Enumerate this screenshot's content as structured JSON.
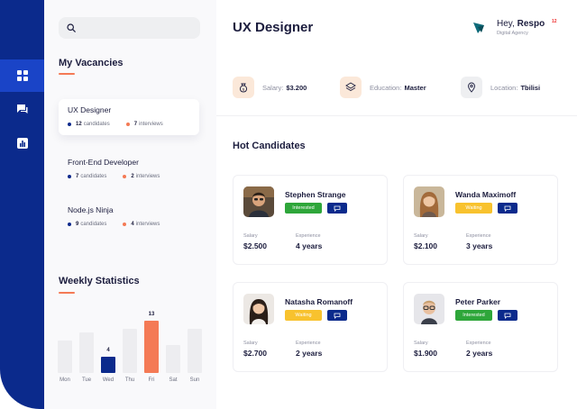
{
  "search": {
    "placeholder": ""
  },
  "nav": {
    "items": [
      {
        "icon": "dashboard-icon",
        "active": true
      },
      {
        "icon": "messages-icon",
        "active": false
      },
      {
        "icon": "chart-icon",
        "active": false
      }
    ]
  },
  "vacancies": {
    "title": "My Vacancies",
    "items": [
      {
        "title": "UX Designer",
        "candidates_count": "12",
        "candidates_label": "candidates",
        "interviews_count": "7",
        "interviews_label": "interviews",
        "active": true
      },
      {
        "title": "Front-End Developer",
        "candidates_count": "7",
        "candidates_label": "candidates",
        "interviews_count": "2",
        "interviews_label": "interviews",
        "active": false
      },
      {
        "title": "Node.js Ninja",
        "candidates_count": "9",
        "candidates_label": "candidates",
        "interviews_count": "4",
        "interviews_label": "interviews",
        "active": false
      }
    ]
  },
  "weekly": {
    "title": "Weekly Statistics"
  },
  "chart_data": {
    "type": "bar",
    "title": "Weekly Statistics",
    "categories": [
      "Mon",
      "Tue",
      "Wed",
      "Thu",
      "Fri",
      "Sat",
      "Sun"
    ],
    "values": [
      8,
      10,
      4,
      11,
      13,
      7,
      11
    ],
    "value_labels": [
      "",
      "",
      "4",
      "",
      "13",
      "",
      ""
    ],
    "highlight": {
      "Wed": "#0b2a8c",
      "Fri": "#f47a55"
    },
    "base_color": "#ededf0",
    "ylim": [
      0,
      13
    ],
    "grid": false
  },
  "header": {
    "title": "UX Designer",
    "user": {
      "greeting": "Hey, ",
      "name": "Respo",
      "company": "Digital Agency",
      "badge": "12"
    }
  },
  "info": {
    "salary": {
      "label": "Salary:",
      "value": "$3.200"
    },
    "education": {
      "label": "Education:",
      "value": "Master"
    },
    "location": {
      "label": "Location:",
      "value": "Tbilisi"
    }
  },
  "hot": {
    "title": "Hot Candidates",
    "salary_label": "Salary",
    "experience_label": "Experience",
    "candidates": [
      {
        "name": "Stephen Strange",
        "status": "Interested",
        "salary": "$2.500",
        "experience": "4 years"
      },
      {
        "name": "Wanda Maximoff",
        "status": "Waiting",
        "salary": "$2.100",
        "experience": "3 years"
      },
      {
        "name": "Natasha Romanoff",
        "status": "Waiting",
        "salary": "$2.700",
        "experience": "2 years"
      },
      {
        "name": "Peter Parker",
        "status": "Interested",
        "salary": "$1.900",
        "experience": "2 years"
      }
    ]
  },
  "colors": {
    "navy": "#0b2a8c",
    "accent": "#f47a55",
    "green": "#2ea63a",
    "yellow": "#f8c22e"
  }
}
